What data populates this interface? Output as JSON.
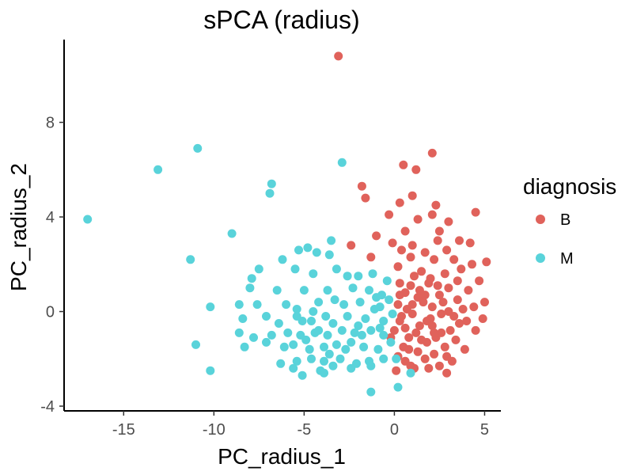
{
  "chart_data": {
    "type": "scatter",
    "title": "sPCA (radius)",
    "xlabel": "PC_radius_1",
    "ylabel": "PC_radius_2",
    "xlim": [
      -18.3,
      5.9
    ],
    "ylim": [
      -4.2,
      11.5
    ],
    "x_ticks": [
      -15,
      -10,
      -5,
      0,
      5
    ],
    "y_ticks": [
      -4,
      0,
      4,
      8
    ],
    "x_tick_labels": [
      "-15",
      "-10",
      "-5",
      "0",
      "5"
    ],
    "y_tick_labels": [
      "-4",
      "0",
      "4",
      "8"
    ],
    "grid": false,
    "legend": {
      "title": "diagnosis",
      "placement": "right",
      "entries": [
        {
          "label": "B",
          "color": "#e0625b"
        },
        {
          "label": "M",
          "color": "#59d3da"
        }
      ]
    },
    "series": [
      {
        "name": "B",
        "color": "#e0625b",
        "points": [
          [
            -3.1,
            10.8
          ],
          [
            2.1,
            6.7
          ],
          [
            0.5,
            6.2
          ],
          [
            1.2,
            6.0
          ],
          [
            -1.8,
            5.3
          ],
          [
            1.0,
            4.9
          ],
          [
            -1.6,
            4.8
          ],
          [
            0.3,
            4.6
          ],
          [
            2.3,
            4.5
          ],
          [
            4.5,
            4.2
          ],
          [
            -0.3,
            4.1
          ],
          [
            2.1,
            4.1
          ],
          [
            1.3,
            3.9
          ],
          [
            3.0,
            3.8
          ],
          [
            0.6,
            3.4
          ],
          [
            2.5,
            3.4
          ],
          [
            -1.0,
            3.2
          ],
          [
            2.4,
            3.0
          ],
          [
            3.6,
            3.0
          ],
          [
            -0.1,
            2.9
          ],
          [
            4.2,
            2.9
          ],
          [
            -2.4,
            2.8
          ],
          [
            1.0,
            2.8
          ],
          [
            2.9,
            2.6
          ],
          [
            -1.3,
            2.3
          ],
          [
            0.4,
            2.6
          ],
          [
            1.7,
            2.5
          ],
          [
            5.1,
            2.1
          ],
          [
            4.3,
            2.0
          ],
          [
            0.9,
            2.3
          ],
          [
            2.2,
            2.2
          ],
          [
            3.3,
            2.2
          ],
          [
            0.2,
            1.9
          ],
          [
            1.5,
            1.7
          ],
          [
            2.8,
            1.6
          ],
          [
            3.7,
            1.8
          ],
          [
            1.1,
            1.5
          ],
          [
            4.7,
            1.3
          ],
          [
            0.3,
            1.2
          ],
          [
            1.9,
            1.2
          ],
          [
            3.0,
            1.0
          ],
          [
            4.1,
            0.9
          ],
          [
            0.6,
            0.8
          ],
          [
            2.5,
            0.7
          ],
          [
            3.5,
            0.5
          ],
          [
            5.0,
            0.4
          ],
          [
            1.3,
            0.6
          ],
          [
            0.2,
            0.3
          ],
          [
            2.1,
            0.2
          ],
          [
            4.4,
            0.2
          ],
          [
            3.0,
            0.0
          ],
          [
            1.0,
            -0.1
          ],
          [
            4.9,
            -0.3
          ],
          [
            0.3,
            -0.4
          ],
          [
            2.0,
            -0.3
          ],
          [
            3.6,
            -0.5
          ],
          [
            1.4,
            -0.6
          ],
          [
            4.5,
            -0.8
          ],
          [
            0.0,
            -0.8
          ],
          [
            2.6,
            -0.9
          ],
          [
            0.8,
            -1.1
          ],
          [
            3.4,
            -1.2
          ],
          [
            1.8,
            -1.3
          ],
          [
            -0.2,
            -1.1
          ],
          [
            2.8,
            -1.5
          ],
          [
            0.5,
            -1.5
          ],
          [
            1.3,
            -1.7
          ],
          [
            3.9,
            -1.6
          ],
          [
            2.2,
            -1.8
          ],
          [
            0.2,
            -1.9
          ],
          [
            1.7,
            -2.0
          ],
          [
            3.2,
            -2.1
          ],
          [
            0.6,
            -2.1
          ],
          [
            2.5,
            -2.3
          ],
          [
            1.1,
            -2.4
          ],
          [
            0.1,
            -2.5
          ],
          [
            2.9,
            -2.6
          ],
          [
            1.9,
            -2.4
          ],
          [
            0.9,
            -2.3
          ],
          [
            2.1,
            -0.6
          ],
          [
            1.6,
            0.4
          ],
          [
            0.7,
            0.1
          ],
          [
            2.4,
            1.1
          ],
          [
            3.3,
            -0.2
          ],
          [
            1.2,
            -0.9
          ],
          [
            2.0,
            1.4
          ],
          [
            0.4,
            -0.2
          ],
          [
            1.5,
            -1.2
          ],
          [
            2.7,
            0.4
          ],
          [
            3.8,
            0.1
          ],
          [
            0.9,
            1.1
          ],
          [
            1.8,
            -0.4
          ],
          [
            2.3,
            -1.1
          ],
          [
            1.0,
            0.3
          ],
          [
            3.1,
            -0.8
          ],
          [
            0.6,
            -0.7
          ],
          [
            2.6,
            -0.1
          ],
          [
            1.4,
            0.9
          ],
          [
            3.5,
            1.3
          ],
          [
            0.8,
            -1.6
          ],
          [
            2.2,
            -0.9
          ],
          [
            1.7,
            0.7
          ],
          [
            2.9,
            -1.9
          ],
          [
            0.3,
            0.7
          ],
          [
            4.0,
            -0.4
          ]
        ]
      },
      {
        "name": "M",
        "color": "#59d3da",
        "points": [
          [
            -17.0,
            3.9
          ],
          [
            -13.1,
            6.0
          ],
          [
            -10.9,
            6.9
          ],
          [
            -2.9,
            6.3
          ],
          [
            -6.8,
            5.4
          ],
          [
            -6.9,
            5.0
          ],
          [
            -9.0,
            3.3
          ],
          [
            -11.3,
            2.2
          ],
          [
            -10.2,
            0.2
          ],
          [
            -11.0,
            -1.4
          ],
          [
            -10.2,
            -2.5
          ],
          [
            -3.5,
            3.0
          ],
          [
            -4.8,
            2.7
          ],
          [
            -5.3,
            2.6
          ],
          [
            -4.3,
            2.5
          ],
          [
            -3.6,
            2.4
          ],
          [
            -6.2,
            2.2
          ],
          [
            -7.5,
            1.8
          ],
          [
            -7.9,
            1.4
          ],
          [
            -5.5,
            1.8
          ],
          [
            -4.5,
            1.6
          ],
          [
            -3.2,
            1.8
          ],
          [
            -2.6,
            1.5
          ],
          [
            -2.0,
            1.5
          ],
          [
            -1.2,
            1.6
          ],
          [
            -0.4,
            1.3
          ],
          [
            -8.0,
            1.0
          ],
          [
            -6.5,
            0.9
          ],
          [
            -5.0,
            0.9
          ],
          [
            -3.7,
            0.9
          ],
          [
            -2.3,
            1.0
          ],
          [
            -1.4,
            0.9
          ],
          [
            -0.7,
            0.7
          ],
          [
            -8.6,
            0.3
          ],
          [
            -7.6,
            0.3
          ],
          [
            -6.0,
            0.3
          ],
          [
            -5.4,
            0.1
          ],
          [
            -4.2,
            0.4
          ],
          [
            -3.3,
            0.5
          ],
          [
            -2.8,
            0.3
          ],
          [
            -1.9,
            0.4
          ],
          [
            -0.8,
            0.2
          ],
          [
            -8.4,
            -0.3
          ],
          [
            -7.1,
            -0.2
          ],
          [
            -6.4,
            -0.5
          ],
          [
            -5.1,
            -0.4
          ],
          [
            -4.6,
            -0.4
          ],
          [
            -3.8,
            -0.2
          ],
          [
            -2.6,
            -0.2
          ],
          [
            -1.6,
            -0.3
          ],
          [
            -0.6,
            -0.4
          ],
          [
            -0.1,
            -0.1
          ],
          [
            -8.6,
            -0.9
          ],
          [
            -7.8,
            -1.1
          ],
          [
            -6.8,
            -1.0
          ],
          [
            -5.9,
            -0.9
          ],
          [
            -5.2,
            -1.0
          ],
          [
            -4.4,
            -0.9
          ],
          [
            -3.7,
            -1.0
          ],
          [
            -2.9,
            -0.8
          ],
          [
            -2.2,
            -0.9
          ],
          [
            -1.3,
            -0.8
          ],
          [
            -0.6,
            -1.0
          ],
          [
            -8.3,
            -1.5
          ],
          [
            -7.1,
            -1.3
          ],
          [
            -6.1,
            -1.5
          ],
          [
            -5.6,
            -1.4
          ],
          [
            -4.7,
            -1.6
          ],
          [
            -3.9,
            -1.5
          ],
          [
            -3.2,
            -1.4
          ],
          [
            -2.4,
            -1.3
          ],
          [
            -1.7,
            -1.5
          ],
          [
            -0.9,
            -1.6
          ],
          [
            -0.2,
            -1.3
          ],
          [
            -6.3,
            -2.2
          ],
          [
            -5.4,
            -2.1
          ],
          [
            -4.6,
            -2.0
          ],
          [
            -3.9,
            -2.1
          ],
          [
            -3.0,
            -2.0
          ],
          [
            -2.1,
            -2.2
          ],
          [
            -1.4,
            -2.1
          ],
          [
            -0.6,
            -2.0
          ],
          [
            -5.6,
            -2.4
          ],
          [
            -4.1,
            -2.5
          ],
          [
            -3.4,
            -2.3
          ],
          [
            -2.4,
            -2.4
          ],
          [
            -1.3,
            -2.3
          ],
          [
            0.1,
            -2.0
          ],
          [
            -5.1,
            -2.7
          ],
          [
            -3.9,
            -2.6
          ],
          [
            0.9,
            -2.6
          ],
          [
            0.2,
            -3.2
          ],
          [
            -1.3,
            -3.4
          ],
          [
            -5.4,
            -0.2
          ],
          [
            -4.2,
            -0.8
          ],
          [
            -4.9,
            -1.2
          ],
          [
            -3.4,
            -0.5
          ],
          [
            -1.0,
            0.6
          ],
          [
            -2.0,
            -0.6
          ],
          [
            -0.3,
            0.5
          ],
          [
            -3.6,
            -1.8
          ],
          [
            -2.7,
            -1.6
          ],
          [
            -1.8,
            -1.0
          ],
          [
            -4.5,
            0.0
          ],
          [
            -0.8,
            -0.7
          ],
          [
            -1.1,
            0.1
          ]
        ]
      }
    ]
  }
}
